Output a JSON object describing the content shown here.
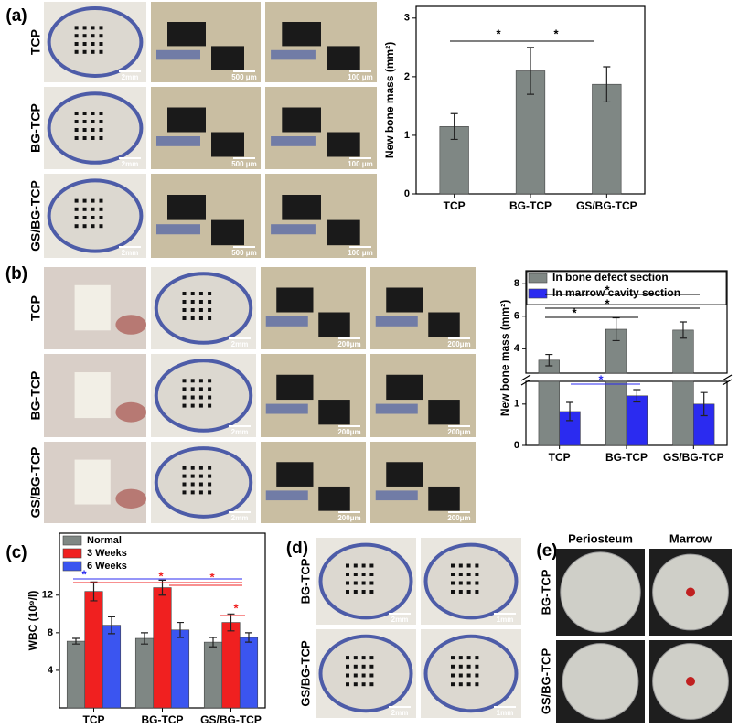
{
  "panels": {
    "a": {
      "label": "(a)",
      "rows": [
        "TCP",
        "BG-TCP",
        "GS/BG-TCP"
      ],
      "scale_bars": [
        [
          "2mm",
          "500 μm",
          "100 μm"
        ],
        [
          "2mm",
          "500 μm",
          "100 μm"
        ],
        [
          "2mm",
          "500 μm",
          "100 μm"
        ]
      ]
    },
    "b": {
      "label": "(b)",
      "rows": [
        "TCP",
        "BG-TCP",
        "GS/BG-TCP"
      ],
      "scale_bars": [
        [
          "2mm",
          "200μm",
          "200μm"
        ],
        [
          "2mm",
          "200μm",
          "200μm"
        ],
        [
          "2mm",
          "200μm",
          "200μm"
        ]
      ]
    },
    "c": {
      "label": "(c)"
    },
    "d": {
      "label": "(d)",
      "rows": [
        "BG-TCP",
        "GS/BG-TCP"
      ],
      "scale_bars": [
        [
          "2mm",
          "1mm"
        ],
        [
          "2mm",
          "1mm"
        ]
      ]
    },
    "e": {
      "label": "(e)",
      "columns": [
        "Periosteum",
        "Marrow"
      ],
      "rows": [
        "BG-TCP",
        "GS/BG-TCP"
      ]
    }
  },
  "chart_data": [
    {
      "type": "bar",
      "ylabel": "New bone mass (mm²)",
      "categories": [
        "TCP",
        "BG-TCP",
        "GS/BG-TCP"
      ],
      "values": [
        1.15,
        2.1,
        1.87
      ],
      "errors": [
        0.22,
        0.4,
        0.3
      ],
      "color": "#7f8784",
      "ylim": [
        0,
        3.2
      ],
      "yticks": [
        0,
        1,
        2,
        3
      ],
      "annotations": [
        "*",
        "*"
      ]
    },
    {
      "type": "bar",
      "ylabel": "New bone mass (mm²)",
      "categories": [
        "TCP",
        "BG-TCP",
        "GS/BG-TCP"
      ],
      "series": [
        {
          "name": "In bone defect section",
          "color": "#7f8784",
          "values": [
            3.3,
            5.2,
            5.15
          ],
          "errors": [
            0.35,
            0.7,
            0.5
          ]
        },
        {
          "name": "In marrow cavity section",
          "color": "#2b2bf0",
          "values": [
            0.82,
            1.2,
            1.0
          ],
          "errors": [
            0.22,
            0.15,
            0.28
          ]
        }
      ],
      "y_segments": [
        {
          "ylim": [
            0,
            1.55
          ],
          "yticks": [
            0,
            1
          ]
        },
        {
          "ylim": [
            2.5,
            8.8
          ],
          "yticks": [
            4,
            6,
            8
          ]
        }
      ],
      "annotations": [
        "*",
        "*",
        "*",
        "*"
      ]
    },
    {
      "type": "bar",
      "ylabel": "WBC (10⁹/l)",
      "categories": [
        "TCP",
        "BG-TCP",
        "GS/BG-TCP"
      ],
      "series": [
        {
          "name": "Normal",
          "color": "#7f8784",
          "values": [
            7.1,
            7.4,
            7.0
          ],
          "errors": [
            0.3,
            0.6,
            0.5
          ]
        },
        {
          "name": "3 Weeks",
          "color": "#f02020",
          "values": [
            12.4,
            12.8,
            9.1
          ],
          "errors": [
            1.0,
            0.8,
            0.9
          ]
        },
        {
          "name": "6 Weeks",
          "color": "#3b55f0",
          "values": [
            8.8,
            8.3,
            7.5
          ],
          "errors": [
            0.9,
            0.8,
            0.5
          ]
        }
      ],
      "ylim": [
        0,
        18.6
      ],
      "yticks": [
        4,
        8,
        12
      ],
      "annotations": [
        "*",
        "*",
        "*",
        "*"
      ]
    }
  ]
}
